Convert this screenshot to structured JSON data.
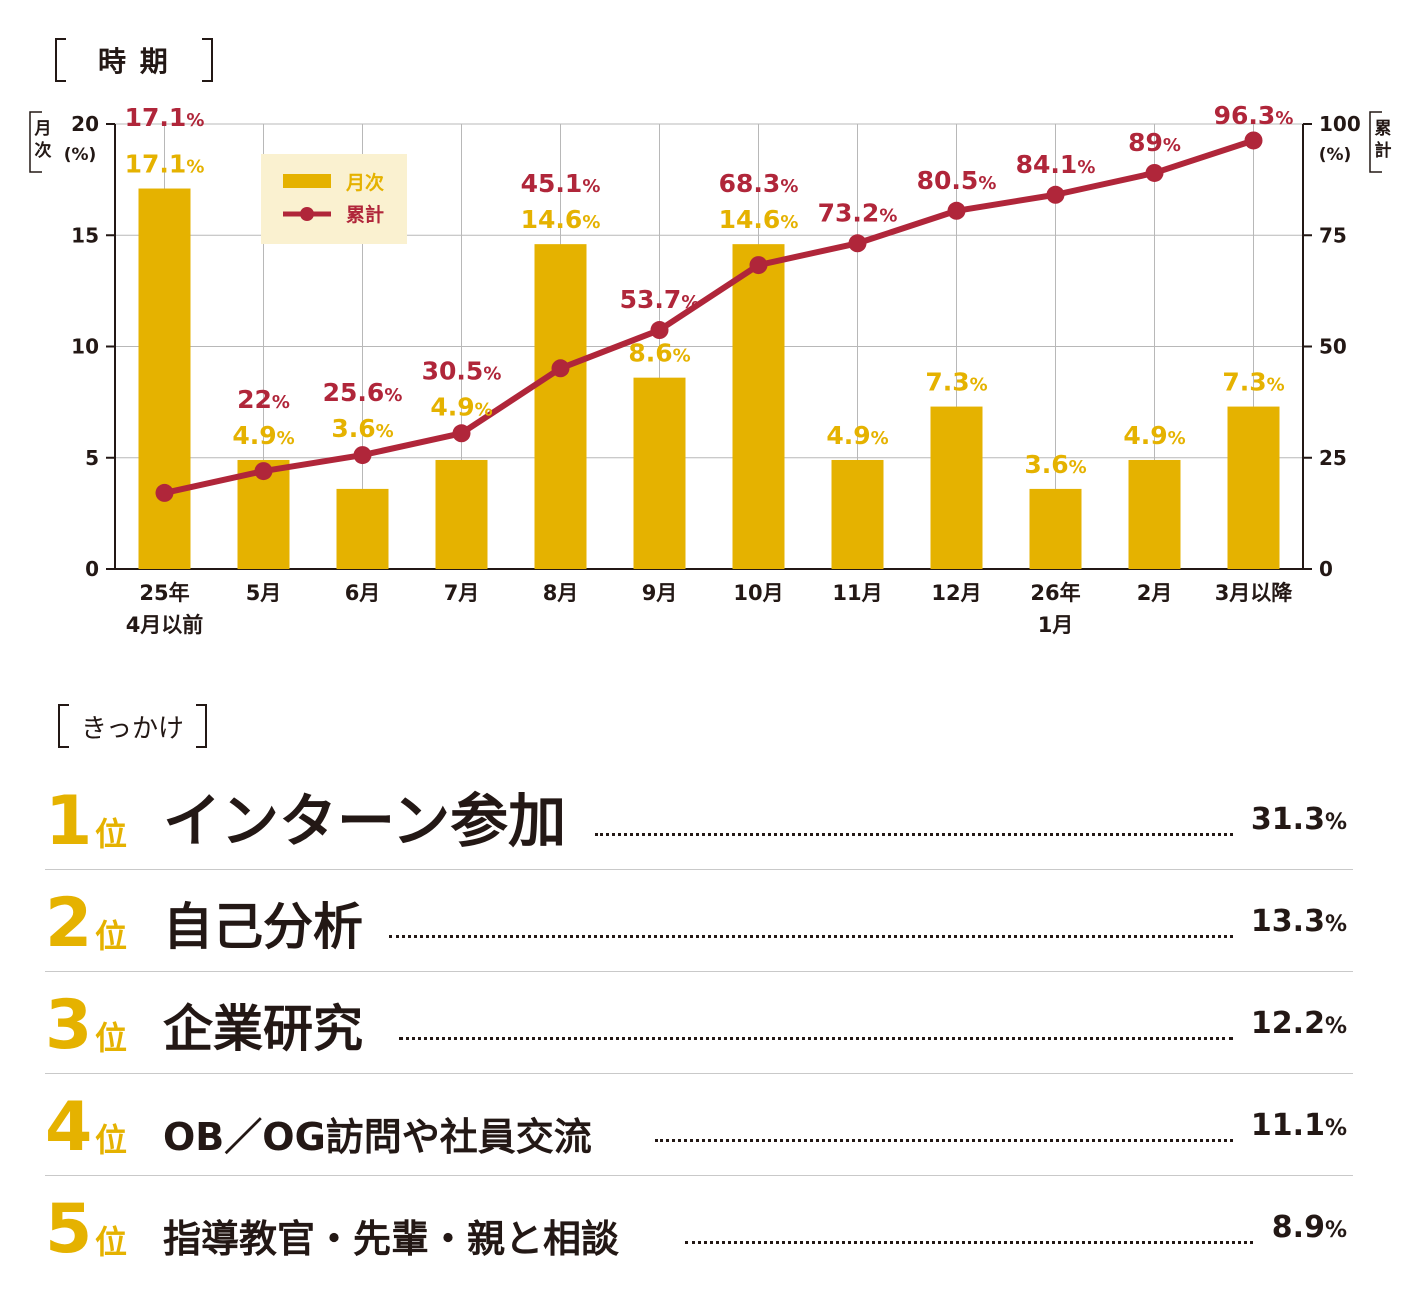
{
  "section_period": {
    "title": "時 期"
  },
  "chart_data": {
    "type": "bar+line",
    "categories": [
      "25年\n4月以前",
      "5月",
      "6月",
      "7月",
      "8月",
      "9月",
      "10月",
      "11月",
      "12月",
      "26年\n1月",
      "2月",
      "3月以降"
    ],
    "series": [
      {
        "name": "月次",
        "type": "bar",
        "axis": "left",
        "values": [
          17.1,
          4.9,
          3.6,
          4.9,
          14.6,
          8.6,
          14.6,
          4.9,
          7.3,
          3.6,
          4.9,
          7.3
        ],
        "labels": [
          "17.1",
          "4.9",
          "3.6",
          "4.9",
          "14.6",
          "8.6",
          "14.6",
          "4.9",
          "7.3",
          "3.6",
          "4.9",
          "7.3"
        ],
        "color": "#e5b200"
      },
      {
        "name": "累計",
        "type": "line",
        "axis": "right",
        "values": [
          17.1,
          22,
          25.6,
          30.5,
          45.1,
          53.7,
          68.3,
          73.2,
          80.5,
          84.1,
          89,
          96.3
        ],
        "labels": [
          "17.1",
          "22",
          "25.6",
          "30.5",
          "45.1",
          "53.7",
          "68.3",
          "73.2",
          "80.5",
          "84.1",
          "89",
          "96.3"
        ],
        "color": "#b0263a"
      }
    ],
    "y_left": {
      "label": "月次",
      "unit": "(%)",
      "range": [
        0,
        20
      ],
      "ticks": [
        0,
        5,
        10,
        15,
        20
      ]
    },
    "y_right": {
      "label": "累計",
      "unit": "(%)",
      "range": [
        0,
        100
      ],
      "ticks": [
        0,
        25,
        50,
        75,
        100
      ]
    },
    "label_suffix": "%",
    "grid": true,
    "legend_position": "top-left"
  },
  "section_trigger": {
    "title": "きっかけ"
  },
  "ranking": [
    {
      "rank": "1",
      "suffix": "位",
      "label": "インターン参加",
      "value": "31.3",
      "pct": "%"
    },
    {
      "rank": "2",
      "suffix": "位",
      "label": "自己分析",
      "value": "13.3",
      "pct": "%"
    },
    {
      "rank": "3",
      "suffix": "位",
      "label": "企業研究",
      "value": "12.2",
      "pct": "%"
    },
    {
      "rank": "4",
      "suffix": "位",
      "label": "OB／OG訪問や社員交流",
      "value": "11.1",
      "pct": "%"
    },
    {
      "rank": "5",
      "suffix": "位",
      "label": "指導教官・先輩・親と相談",
      "value": "8.9",
      "pct": "%"
    }
  ],
  "colors": {
    "accent_yellow": "#e5b200",
    "accent_red": "#b0263a",
    "text": "#231815",
    "legend_bg": "#faf1d0"
  }
}
